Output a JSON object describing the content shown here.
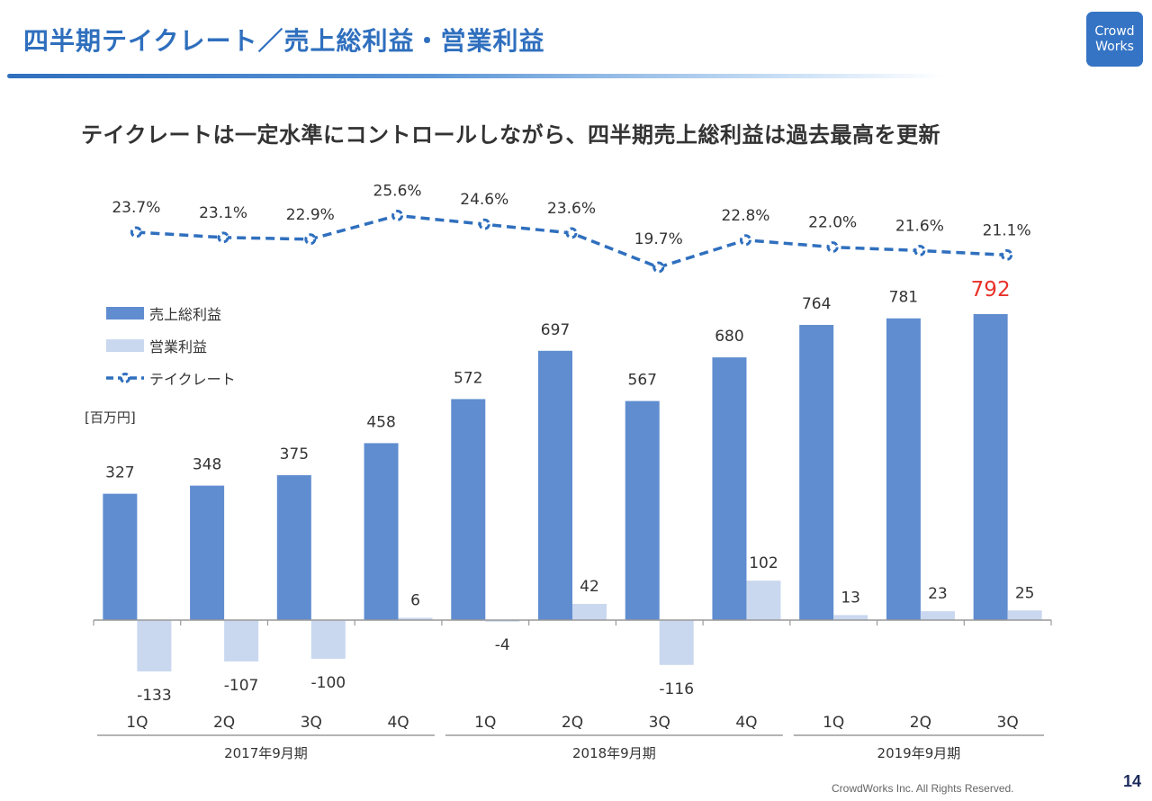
{
  "header": {
    "title": "四半期テイクレート／売上総利益・営業利益",
    "logo_line1": "Crowd",
    "logo_line2": "Works"
  },
  "subtitle": "テイクレートは一定水準にコントロールしながら、四半期売上総利益は過去最高を更新",
  "legend": {
    "gross_profit": "売上総利益",
    "operating_profit": "営業利益",
    "take_rate": "テイクレート"
  },
  "unit_label": "[百万円]",
  "footer": {
    "copyright": "CrowdWorks Inc. All Rights Reserved.",
    "page_number": "14"
  },
  "colors": {
    "gross_profit": "#608dd0",
    "operating_profit": "#c9d8ef",
    "take_rate": "#2f6fbe",
    "highlight": "#e8312a",
    "title": "#2f6fbe"
  },
  "chart_data": {
    "type": "bar",
    "title": "四半期テイクレート／売上総利益・営業利益",
    "ylabel": "[百万円]",
    "categories": [
      "1Q",
      "2Q",
      "3Q",
      "4Q",
      "1Q",
      "2Q",
      "3Q",
      "4Q",
      "1Q",
      "2Q",
      "3Q"
    ],
    "groups": [
      {
        "label": "2017年9月期",
        "count": 4
      },
      {
        "label": "2018年9月期",
        "count": 4
      },
      {
        "label": "2019年9月期",
        "count": 3
      }
    ],
    "series": [
      {
        "name": "売上総利益",
        "type": "bar",
        "values": [
          327,
          348,
          375,
          458,
          572,
          697,
          567,
          680,
          764,
          781,
          792
        ],
        "highlight_last": true
      },
      {
        "name": "営業利益",
        "type": "bar",
        "values": [
          -133,
          -107,
          -100,
          6,
          -4,
          42,
          -116,
          102,
          13,
          23,
          25
        ]
      },
      {
        "name": "テイクレート",
        "type": "line",
        "unit": "%",
        "values": [
          23.7,
          23.1,
          22.9,
          25.6,
          24.6,
          23.6,
          19.7,
          22.8,
          22.0,
          21.6,
          21.1
        ],
        "labels": [
          "23.7%",
          "23.1%",
          "22.9%",
          "25.6%",
          "24.6%",
          "23.6%",
          "19.7%",
          "22.8%",
          "22.0%",
          "21.6%",
          "21.1%"
        ]
      }
    ],
    "legend_position": "left",
    "grid": false
  }
}
